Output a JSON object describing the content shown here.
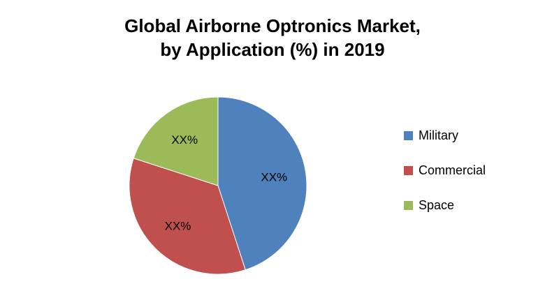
{
  "colors": {
    "military": "#4f81bd",
    "commercial": "#c0504d",
    "space": "#9bbb59"
  },
  "chart_data": {
    "type": "pie",
    "title_lines": [
      "Global Airborne Optronics Market,",
      "by Application (%) in 2019"
    ],
    "labels": [
      "Military",
      "Commercial",
      "Space"
    ],
    "values": [
      45,
      35,
      20
    ],
    "data_labels": [
      "XX%",
      "XX%",
      "XX%"
    ],
    "legend_position": "right"
  }
}
